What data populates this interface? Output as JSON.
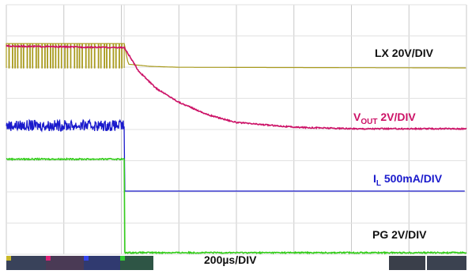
{
  "chart_data": {
    "type": "line",
    "title": "",
    "xlabel": "200µs/DIV",
    "time_div": "200µs/DIV",
    "divisions": {
      "x": 8,
      "y": 8
    },
    "grid": true,
    "trigger_time_div": 2.05,
    "series": [
      {
        "name": "LX",
        "label": "LX 20V/DIV",
        "color": "#a89a1c",
        "scale": "20V/DIV",
        "behavior": "switching pulses until shutdown, then a small decaying tail to 0 V",
        "points": [
          [
            0,
            0.78
          ],
          [
            2.05,
            0.78
          ],
          [
            2.12,
            0.12
          ],
          [
            2.5,
            0.05
          ],
          [
            3.0,
            0.02
          ],
          [
            8,
            0.0
          ]
        ]
      },
      {
        "name": "VOUT",
        "label": "VOUT 2V/DIV",
        "color": "#cc1166",
        "scale": "2V/DIV",
        "behavior": "constant, then exponential decay after shutdown",
        "points": [
          [
            0,
            2.7
          ],
          [
            2.05,
            2.65
          ],
          [
            2.3,
            1.9
          ],
          [
            2.6,
            1.35
          ],
          [
            3.0,
            0.9
          ],
          [
            3.5,
            0.5
          ],
          [
            4.0,
            0.25
          ],
          [
            5.0,
            0.1
          ],
          [
            6.0,
            0.05
          ],
          [
            8,
            0.05
          ]
        ]
      },
      {
        "name": "IL",
        "label": "IL 500mA/DIV",
        "color": "#1a1acc",
        "scale": "500mA/DIV",
        "behavior": "noisy inductor current until shutdown, then 0 A",
        "points": [
          [
            0,
            2.1
          ],
          [
            2.05,
            2.1
          ],
          [
            2.06,
            0.0
          ],
          [
            8,
            0.0
          ]
        ]
      },
      {
        "name": "PG",
        "label": "PG 2V/DIV",
        "color": "#33cc1a",
        "scale": "2V/DIV",
        "behavior": "high, then falls to 0 V at shutdown",
        "points": [
          [
            0,
            3.0
          ],
          [
            2.05,
            3.0
          ],
          [
            2.06,
            0.0
          ],
          [
            8,
            0.0
          ]
        ]
      }
    ],
    "annotations": [
      {
        "text": "LX 20V/DIV",
        "color": "#111111"
      },
      {
        "base": "V",
        "sub": "OUT",
        "text": " 2V/DIV",
        "color": "#cc1166"
      },
      {
        "base": "I",
        "sub": "L",
        "text": " 500mA/DIV",
        "color": "#1a1acc"
      },
      {
        "text": "PG 2V/DIV",
        "color": "#111111"
      }
    ]
  }
}
